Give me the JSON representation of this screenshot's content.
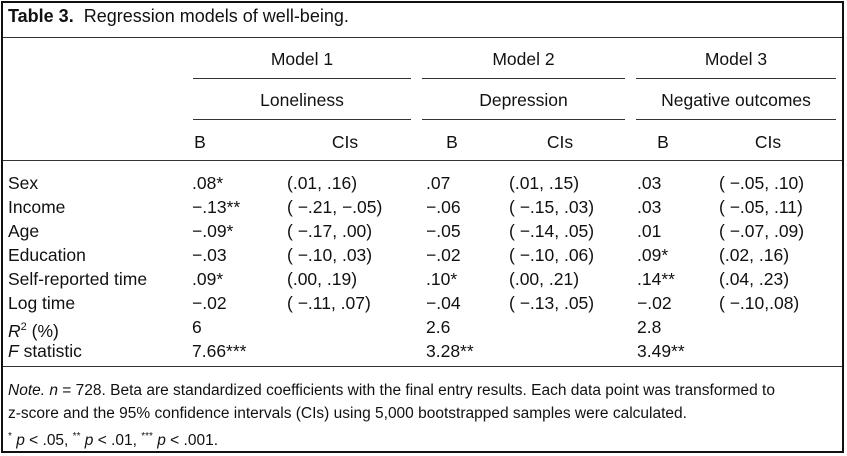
{
  "table": {
    "caption_label": "Table 3.",
    "caption_text": "Regression models of well-being.",
    "models": [
      {
        "name": "Model 1",
        "outcome": "Loneliness"
      },
      {
        "name": "Model 2",
        "outcome": "Depression"
      },
      {
        "name": "Model 3",
        "outcome": "Negative outcomes"
      }
    ],
    "subheaders": [
      "B",
      "CIs",
      "B",
      "CIs",
      "B",
      "CIs"
    ],
    "rows": [
      {
        "label": "Sex",
        "cells": [
          ".08*",
          "(.01, .16)",
          ".07",
          "(.01, .15)",
          ".03",
          "( −.05, .10)"
        ]
      },
      {
        "label": "Income",
        "cells": [
          "−.13**",
          "( −.21, −.05)",
          "−.06",
          "( −.15, .03)",
          ".03",
          "( −.05, .11)"
        ]
      },
      {
        "label": "Age",
        "cells": [
          "−.09*",
          "( −.17, .00)",
          "−.05",
          "( −.14, .05)",
          ".01",
          "( −.07, .09)"
        ]
      },
      {
        "label": "Education",
        "cells": [
          "−.03",
          "( −.10, .03)",
          "−.02",
          "( −.10, .06)",
          ".09*",
          "(.02, .16)"
        ]
      },
      {
        "label": "Self-reported time",
        "cells": [
          ".09*",
          "(.00, .19)",
          ".10*",
          "(.00, .21)",
          ".14**",
          "(.04, .23)"
        ]
      },
      {
        "label": "Log time",
        "cells": [
          "−.02",
          "( −.11, .07)",
          "−.04",
          "( −.13, .05)",
          "−.02",
          "( −.10,.08)"
        ]
      },
      {
        "label_main": "R",
        "label_sup": "2",
        "label_rest": " (%)",
        "cells": [
          "6",
          "",
          "2.6",
          "",
          "2.8",
          ""
        ]
      },
      {
        "label_main": "F",
        "label_rest": " statistic",
        "cells": [
          "7.66***",
          "",
          "3.28**",
          "",
          "3.49**",
          ""
        ]
      }
    ],
    "note": {
      "prefix": "Note.",
      "n_label": "n",
      "line1_rest": " = 728. Beta are standardized coefficients with the final entry results. Each data point was transformed to",
      "line2": "z-score and the 95% confidence intervals (CIs) using 5,000 bootstrapped samples were calculated.",
      "sig": [
        {
          "stars": "*",
          "p": "p",
          "val": " < .05, "
        },
        {
          "stars": "**",
          "p": "p",
          "val": " < .01, "
        },
        {
          "stars": "***",
          "p": "p",
          "val": " < .001."
        }
      ]
    }
  }
}
